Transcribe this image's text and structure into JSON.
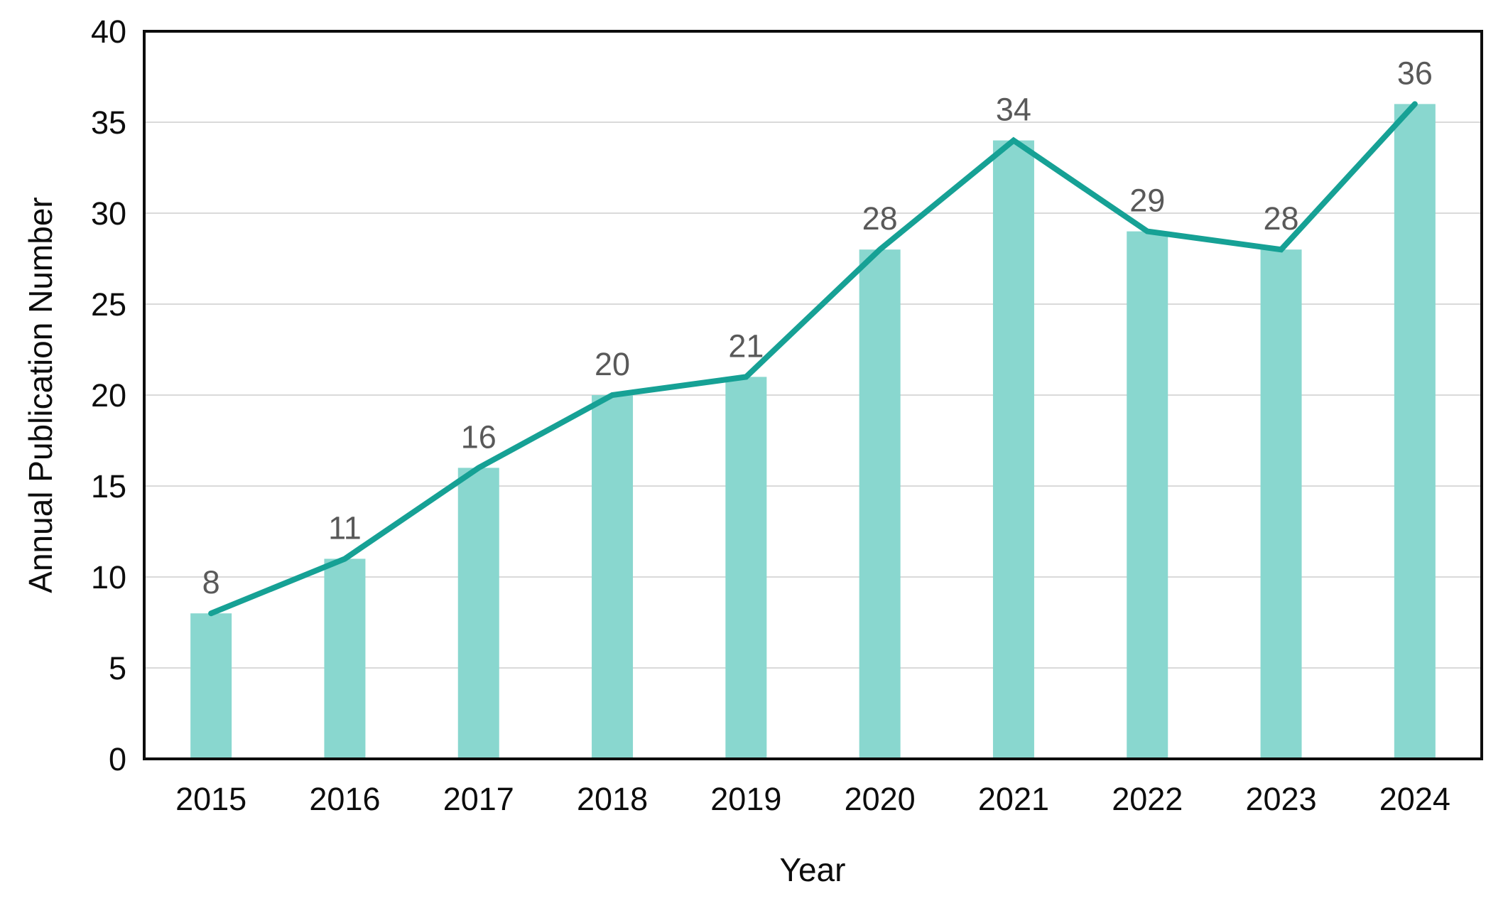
{
  "chart_data": {
    "type": "bar",
    "combo": "bar with line overlay of same series",
    "title": "",
    "xlabel": "Year",
    "ylabel": "Annual Publication Number",
    "categories": [
      "2015",
      "2016",
      "2017",
      "2018",
      "2019",
      "2020",
      "2021",
      "2022",
      "2023",
      "2024"
    ],
    "series": [
      {
        "name": "annual-publications-bars",
        "type": "bar",
        "values": [
          8,
          11,
          16,
          20,
          21,
          28,
          34,
          29,
          28,
          36
        ]
      },
      {
        "name": "annual-publications-trend",
        "type": "line",
        "values": [
          8,
          11,
          16,
          20,
          21,
          28,
          34,
          29,
          28,
          36
        ]
      }
    ],
    "data_labels": [
      "8",
      "11",
      "16",
      "20",
      "21",
      "28",
      "34",
      "29",
      "28",
      "36"
    ],
    "yticks": [
      0,
      5,
      10,
      15,
      20,
      25,
      30,
      35,
      40
    ],
    "ylim": [
      0,
      40
    ],
    "xlim_categories": true,
    "grid": "horizontal-only",
    "legend_position": "none",
    "colors": {
      "bar_fill": "#89d7cf",
      "line_stroke": "#16a195",
      "data_label": "#595959",
      "gridline": "#dadada",
      "axis_border": "#0d0d0d",
      "tick_label": "#0d0d0d",
      "background": "#ffffff"
    }
  }
}
